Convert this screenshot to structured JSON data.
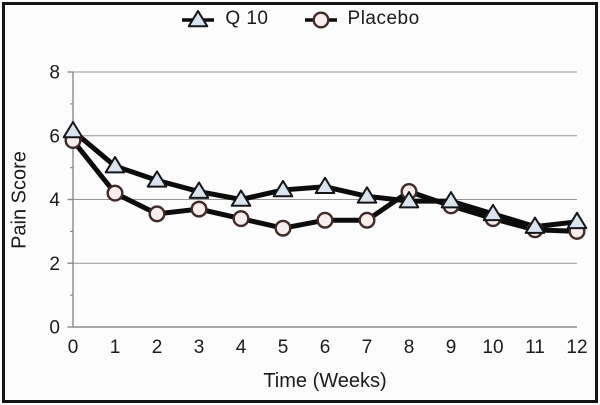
{
  "figure": {
    "background": "#fcfcfc",
    "border_color": "#141414",
    "axis_color": "#8a8a8a",
    "grid_color": "#979797",
    "text_color": "#1b1b1b"
  },
  "chart_data": {
    "type": "line",
    "title": "",
    "xlabel": "Time (Weeks)",
    "ylabel": "Pain Score",
    "xlim": [
      0,
      12
    ],
    "ylim": [
      0,
      8
    ],
    "x": [
      0,
      1,
      2,
      3,
      4,
      5,
      6,
      7,
      8,
      9,
      10,
      11,
      12
    ],
    "x_tick_labels": [
      "0",
      "1",
      "2",
      "3",
      "4",
      "5",
      "6",
      "7",
      "8",
      "9",
      "10",
      "11",
      "12"
    ],
    "y_ticks": [
      0,
      2,
      4,
      6,
      8
    ],
    "y_tick_labels": [
      "0",
      "2",
      "4",
      "6",
      "8"
    ],
    "y_minor_ticks": [
      1,
      3,
      5,
      7
    ],
    "grid_values": [
      2,
      4,
      6,
      8
    ],
    "grid": "horizontal-major",
    "legend_position": "top-center",
    "series": [
      {
        "name": "Q 10",
        "marker": "triangle",
        "marker_fill": "#d9e4ee",
        "marker_stroke": "#14161a",
        "line_color": "#0c0c0c",
        "values": [
          6.15,
          5.05,
          4.6,
          4.25,
          4.0,
          4.3,
          4.4,
          4.1,
          3.95,
          3.95,
          3.55,
          3.15,
          3.3
        ]
      },
      {
        "name": "Placebo",
        "marker": "circle",
        "marker_fill": "#f6edec",
        "marker_stroke": "#402a28",
        "line_color": "#0c0c0c",
        "values": [
          5.85,
          4.2,
          3.55,
          3.7,
          3.4,
          3.1,
          3.35,
          3.35,
          4.25,
          3.8,
          3.4,
          3.05,
          3.0
        ]
      }
    ]
  }
}
